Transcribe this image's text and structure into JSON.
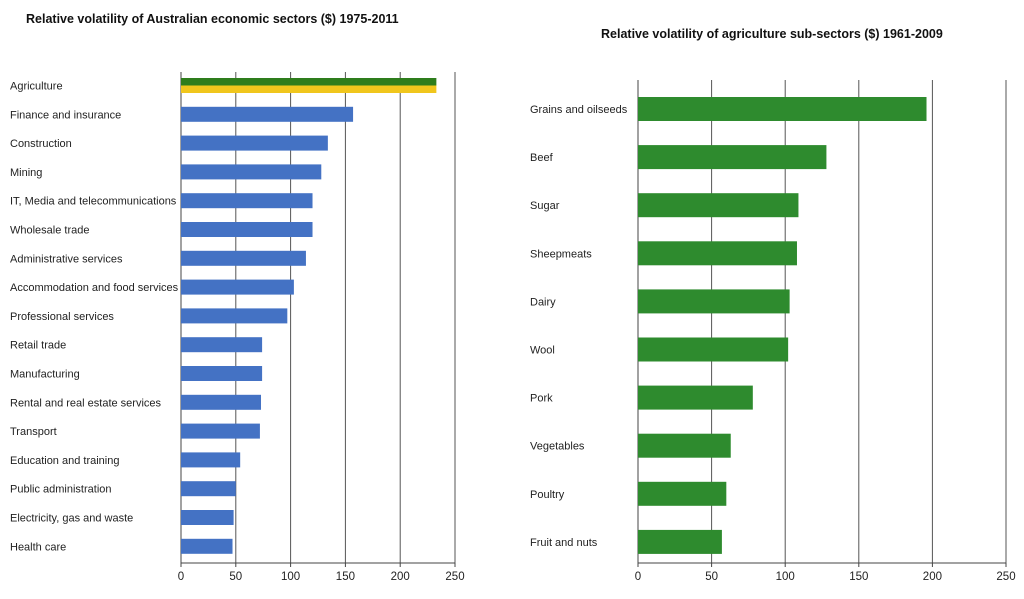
{
  "chart_data": [
    {
      "type": "bar",
      "orientation": "horizontal",
      "title": "Relative volatility of Australian economic sectors ($) 1975-2011",
      "categories": [
        "Agriculture",
        "Finance and insurance",
        "Construction",
        "Mining",
        "IT, Media and telecommunications",
        "Wholesale trade",
        "Administrative services",
        "Accommodation and food services",
        "Professional services",
        "Retail trade",
        "Manufacturing",
        "Rental and real estate services",
        "Transport",
        "Education and training",
        "Public administration",
        "Electricity, gas and waste",
        "Health care"
      ],
      "values": [
        233,
        157,
        134,
        128,
        120,
        120,
        114,
        103,
        97,
        74,
        74,
        73,
        72,
        54,
        50,
        48,
        47
      ],
      "highlight": {
        "category": "Agriculture",
        "colors": [
          "#2e7d1c",
          "#f0c61c"
        ]
      },
      "xlim": [
        0,
        250
      ],
      "xticks": [
        0,
        50,
        100,
        150,
        200,
        250
      ],
      "grid": true,
      "bar_color": "#4472c4"
    },
    {
      "type": "bar",
      "orientation": "horizontal",
      "title": "Relative volatility of agriculture sub-sectors  ($) 1961-2009",
      "categories": [
        "Grains and oilseeds",
        "Beef",
        "Sugar",
        "Sheepmeats",
        "Dairy",
        "Wool",
        "Pork",
        "Vegetables",
        "Poultry",
        "Fruit and nuts"
      ],
      "values": [
        196,
        128,
        109,
        108,
        103,
        102,
        78,
        63,
        60,
        57
      ],
      "xlim": [
        0,
        250
      ],
      "xticks": [
        0,
        50,
        100,
        150,
        200,
        250
      ],
      "grid": true,
      "bar_color": "#2e8b2e"
    }
  ]
}
